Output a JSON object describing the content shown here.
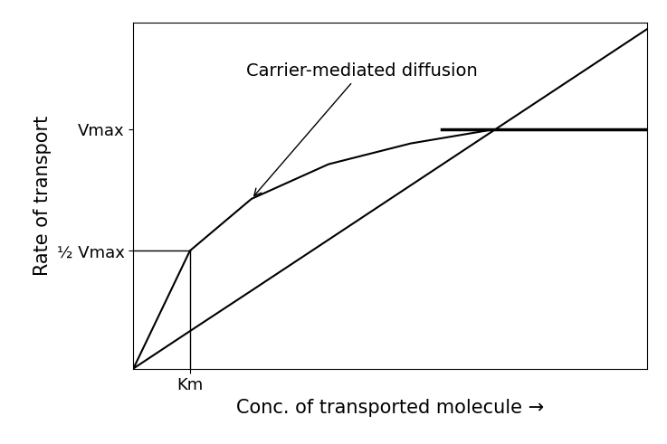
{
  "chart_data": {
    "type": "line",
    "x_label": "Conc. of transported molecule →",
    "y_label": "Rate of transport",
    "annotation": "Carrier-mediated diffusion",
    "x": [
      0,
      11,
      23,
      38,
      54,
      70,
      85,
      100
    ],
    "series": [
      {
        "color": "#000000",
        "line_style": "solid",
        "values": [
          0,
          34,
          49,
          59,
          65,
          69,
          69,
          69
        ]
      },
      {
        "color": "#000000",
        "line_style": "solid",
        "values": [
          0,
          10.8,
          22.5,
          37.2,
          52.9,
          68.6,
          83.3,
          98
        ]
      }
    ],
    "xlim": [
      0,
      100
    ],
    "ylim": [
      0,
      100
    ],
    "xticks": [
      {
        "value": 11,
        "label": "Km"
      }
    ],
    "yticks": [
      {
        "value": 34,
        "label": "½ Vmax"
      },
      {
        "value": 69,
        "label": "Vmax"
      }
    ],
    "grid": false
  }
}
